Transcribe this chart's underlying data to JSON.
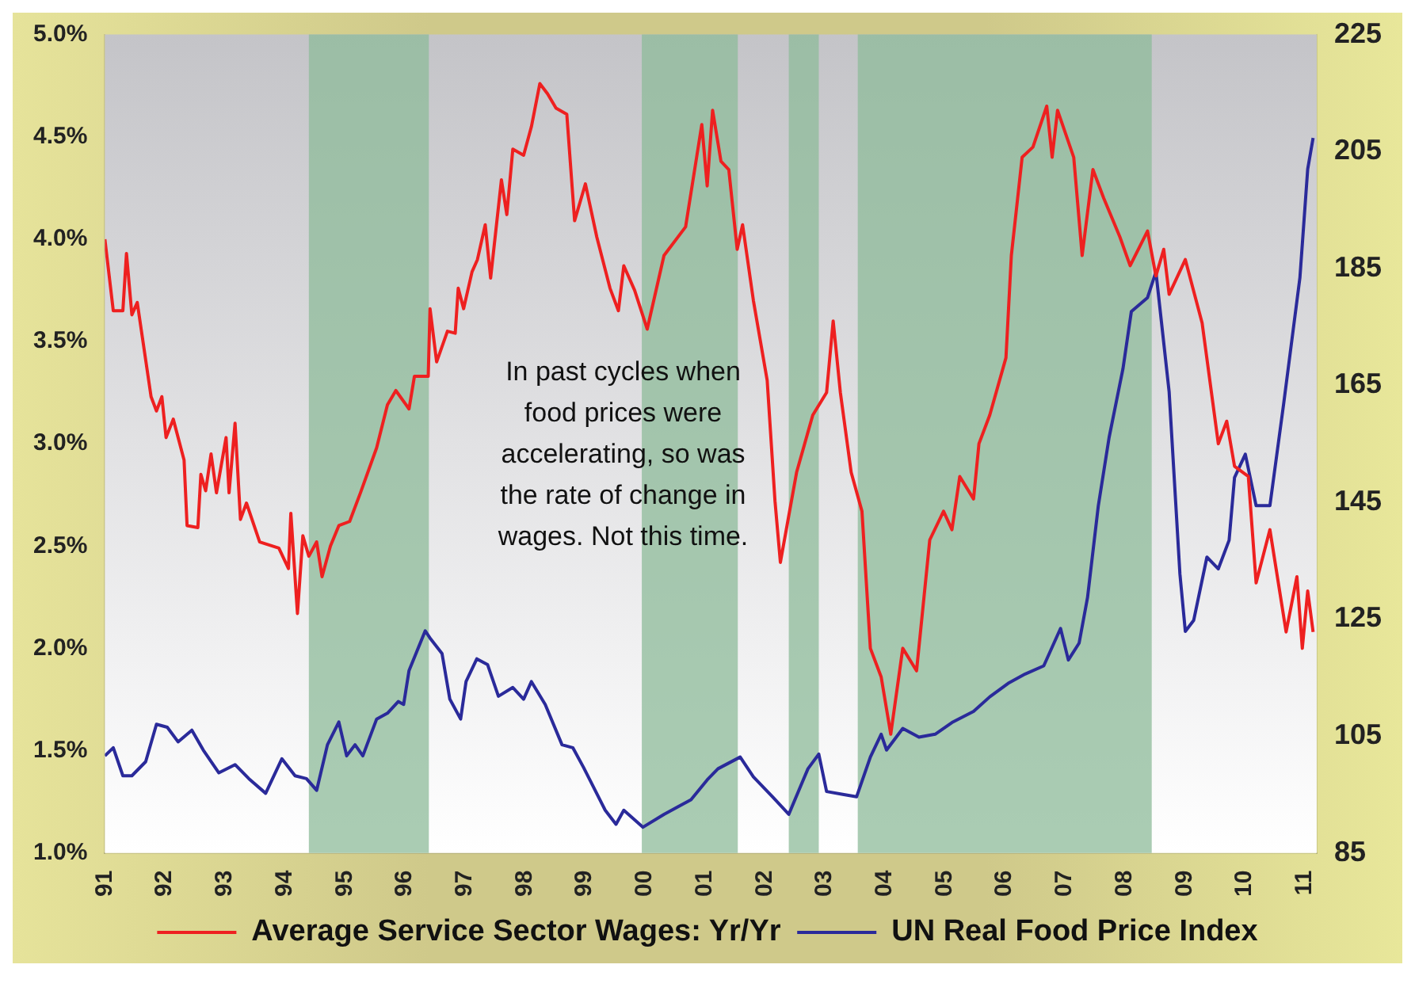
{
  "chart_data": {
    "type": "line",
    "xlim": [
      1991,
      2011.2
    ],
    "xticks": [
      {
        "value": 1991,
        "label": "91"
      },
      {
        "value": 1992,
        "label": "92"
      },
      {
        "value": 1993,
        "label": "93"
      },
      {
        "value": 1994,
        "label": "94"
      },
      {
        "value": 1995,
        "label": "95"
      },
      {
        "value": 1996,
        "label": "96"
      },
      {
        "value": 1997,
        "label": "97"
      },
      {
        "value": 1998,
        "label": "98"
      },
      {
        "value": 1999,
        "label": "99"
      },
      {
        "value": 2000,
        "label": "00"
      },
      {
        "value": 2001,
        "label": "01"
      },
      {
        "value": 2002,
        "label": "02"
      },
      {
        "value": 2003,
        "label": "03"
      },
      {
        "value": 2004,
        "label": "04"
      },
      {
        "value": 2005,
        "label": "05"
      },
      {
        "value": 2006,
        "label": "06"
      },
      {
        "value": 2007,
        "label": "07"
      },
      {
        "value": 2008,
        "label": "08"
      },
      {
        "value": 2009,
        "label": "09"
      },
      {
        "value": 2010,
        "label": "10"
      },
      {
        "value": 2011,
        "label": "11"
      }
    ],
    "ylim": [
      1,
      5
    ],
    "yticks": [
      {
        "value": 1,
        "label": "1.0%"
      },
      {
        "value": 1.5,
        "label": "1.5%"
      },
      {
        "value": 2,
        "label": "2.0%"
      },
      {
        "value": 2.5,
        "label": "2.5%"
      },
      {
        "value": 3,
        "label": "3.0%"
      },
      {
        "value": 3.5,
        "label": "3.5%"
      },
      {
        "value": 4,
        "label": "4.0%"
      },
      {
        "value": 4.5,
        "label": "4.5%"
      },
      {
        "value": 5,
        "label": "5.0%"
      }
    ],
    "y2lim": [
      85,
      225
    ],
    "y2ticks": [
      85,
      105,
      125,
      145,
      165,
      185,
      205,
      225
    ],
    "grid": false,
    "legend": "bottom",
    "marker": "none",
    "line_style": "solid",
    "bands": [
      {
        "axis": "x",
        "from": 1994.4,
        "to": 1996.4,
        "color": "#8dbb9a"
      },
      {
        "axis": "x",
        "from": 1999.95,
        "to": 2001.55,
        "color": "#8dbb9a"
      },
      {
        "axis": "x",
        "from": 2002.4,
        "to": 2002.9,
        "color": "#8dbb9a"
      },
      {
        "axis": "x",
        "from": 2003.55,
        "to": 2008.45,
        "color": "#8dbb9a"
      }
    ],
    "annotations": [
      "In past cycles when food prices were accelerating, so was the rate of change in wages. Not this time."
    ],
    "series": [
      {
        "name": "Average Service Sector Wages: Yr/Yr",
        "color": "#ee2020",
        "x": [
          1991.0,
          1991.14,
          1991.3,
          1991.36,
          1991.45,
          1991.54,
          1991.77,
          1991.86,
          1991.95,
          1992.02,
          1992.14,
          1992.32,
          1992.37,
          1992.55,
          1992.6,
          1992.68,
          1992.77,
          1992.86,
          1993.02,
          1993.07,
          1993.17,
          1993.26,
          1993.36,
          1993.58,
          1993.9,
          1994.06,
          1994.1,
          1994.21,
          1994.3,
          1994.4,
          1994.53,
          1994.62,
          1994.76,
          1994.9,
          1995.08,
          1995.26,
          1995.53,
          1995.71,
          1995.85,
          1996.07,
          1996.16,
          1996.39,
          1996.42,
          1996.53,
          1996.71,
          1996.84,
          1996.89,
          1996.98,
          1997.12,
          1997.21,
          1997.34,
          1997.43,
          1997.61,
          1997.7,
          1997.8,
          1997.98,
          1998.11,
          1998.25,
          1998.38,
          1998.52,
          1998.7,
          1998.83,
          1999.01,
          1999.2,
          1999.42,
          1999.56,
          1999.65,
          1999.83,
          2000.04,
          2000.32,
          2000.68,
          2000.95,
          2001.04,
          2001.13,
          2001.27,
          2001.4,
          2001.54,
          2001.63,
          2001.81,
          2002.04,
          2002.17,
          2002.26,
          2002.53,
          2002.8,
          2003.03,
          2003.14,
          2003.26,
          2003.44,
          2003.62,
          2003.76,
          2003.94,
          2004.1,
          2004.3,
          2004.53,
          2004.75,
          2004.98,
          2005.12,
          2005.25,
          2005.48,
          2005.57,
          2005.75,
          2006.02,
          2006.11,
          2006.29,
          2006.47,
          2006.7,
          2006.79,
          2006.88,
          2007.15,
          2007.29,
          2007.47,
          2007.65,
          2007.92,
          2008.09,
          2008.38,
          2008.52,
          2008.65,
          2008.74,
          2009.01,
          2009.29,
          2009.56,
          2009.7,
          2009.83,
          2010.06,
          2010.19,
          2010.42,
          2010.69,
          2010.87,
          2010.96,
          2011.05,
          2011.14
        ],
        "values": [
          4.0,
          3.65,
          3.65,
          3.93,
          3.63,
          3.69,
          3.23,
          3.16,
          3.23,
          3.03,
          3.12,
          2.92,
          2.6,
          2.59,
          2.85,
          2.77,
          2.95,
          2.76,
          3.03,
          2.76,
          3.1,
          2.63,
          2.71,
          2.52,
          2.49,
          2.39,
          2.66,
          2.17,
          2.55,
          2.45,
          2.52,
          2.35,
          2.5,
          2.6,
          2.62,
          2.76,
          2.98,
          3.19,
          3.26,
          3.17,
          3.33,
          3.33,
          3.66,
          3.4,
          3.55,
          3.54,
          3.76,
          3.66,
          3.84,
          3.9,
          4.07,
          3.81,
          4.29,
          4.12,
          4.44,
          4.41,
          4.55,
          4.76,
          4.71,
          4.64,
          4.61,
          4.09,
          4.27,
          4.01,
          3.76,
          3.65,
          3.87,
          3.75,
          3.56,
          3.92,
          4.06,
          4.56,
          4.26,
          4.63,
          4.38,
          4.34,
          3.95,
          4.07,
          3.7,
          3.31,
          2.72,
          2.42,
          2.86,
          3.14,
          3.25,
          3.6,
          3.25,
          2.86,
          2.67,
          2.0,
          1.86,
          1.58,
          2.0,
          1.89,
          2.53,
          2.67,
          2.58,
          2.84,
          2.73,
          3.0,
          3.14,
          3.42,
          3.92,
          4.4,
          4.45,
          4.65,
          4.4,
          4.63,
          4.4,
          3.92,
          4.34,
          4.2,
          4.01,
          3.87,
          4.04,
          3.82,
          3.95,
          3.73,
          3.9,
          3.59,
          3.0,
          3.11,
          2.89,
          2.84,
          2.32,
          2.58,
          2.08,
          2.35,
          2.0,
          2.28,
          2.08
        ]
      },
      {
        "name": "UN Real Food Price Index",
        "color": "#2a2a9a",
        "axis": "y2",
        "x": [
          1991.0,
          1991.14,
          1991.3,
          1991.45,
          1991.68,
          1991.86,
          1992.04,
          1992.22,
          1992.45,
          1992.64,
          1992.9,
          1993.17,
          1993.4,
          1993.68,
          1993.95,
          1994.17,
          1994.36,
          1994.53,
          1994.71,
          1994.9,
          1995.03,
          1995.17,
          1995.3,
          1995.53,
          1995.71,
          1995.89,
          1995.98,
          1996.07,
          1996.34,
          1996.43,
          1996.62,
          1996.75,
          1996.93,
          1997.02,
          1997.2,
          1997.38,
          1997.56,
          1997.8,
          1997.98,
          1998.11,
          1998.34,
          1998.62,
          1998.8,
          1998.98,
          1999.34,
          1999.52,
          1999.65,
          1999.97,
          2000.32,
          2000.77,
          2001.04,
          2001.22,
          2001.59,
          2001.81,
          2002.13,
          2002.4,
          2002.72,
          2002.9,
          2003.03,
          2003.3,
          2003.53,
          2003.76,
          2003.94,
          2004.03,
          2004.3,
          2004.57,
          2004.84,
          2005.12,
          2005.48,
          2005.75,
          2006.07,
          2006.34,
          2006.65,
          2006.93,
          2007.06,
          2007.24,
          2007.38,
          2007.56,
          2007.74,
          2007.97,
          2008.11,
          2008.38,
          2008.52,
          2008.74,
          2008.92,
          2009.01,
          2009.15,
          2009.37,
          2009.56,
          2009.74,
          2009.83,
          2010.01,
          2010.19,
          2010.42,
          2010.65,
          2010.92,
          2011.05,
          2011.14
        ],
        "values": [
          101.6,
          103.0,
          98.2,
          98.2,
          100.6,
          107.0,
          106.5,
          104.0,
          106.0,
          102.6,
          98.7,
          100.1,
          97.7,
          95.2,
          101.1,
          98.2,
          97.7,
          95.7,
          103.5,
          107.4,
          101.6,
          103.5,
          101.6,
          107.9,
          108.9,
          110.9,
          110.4,
          116.2,
          123.0,
          121.6,
          119.1,
          111.3,
          107.9,
          114.3,
          118.2,
          117.2,
          111.8,
          113.3,
          111.3,
          114.3,
          110.4,
          103.5,
          103.0,
          99.6,
          92.3,
          89.9,
          92.3,
          89.4,
          91.6,
          94.1,
          97.5,
          99.4,
          101.4,
          98.0,
          94.6,
          91.6,
          99.4,
          101.9,
          95.5,
          95.0,
          94.6,
          101.4,
          105.3,
          102.6,
          106.3,
          104.8,
          105.3,
          107.3,
          109.2,
          111.7,
          114.1,
          115.6,
          117.0,
          123.4,
          118.0,
          120.9,
          128.7,
          144.4,
          156.1,
          167.8,
          177.6,
          180.0,
          184.4,
          163.9,
          132.7,
          122.9,
          124.8,
          135.6,
          133.6,
          138.5,
          149.2,
          153.2,
          144.4,
          144.4,
          161.9,
          183.4,
          202.0,
          207.3
        ]
      }
    ]
  }
}
